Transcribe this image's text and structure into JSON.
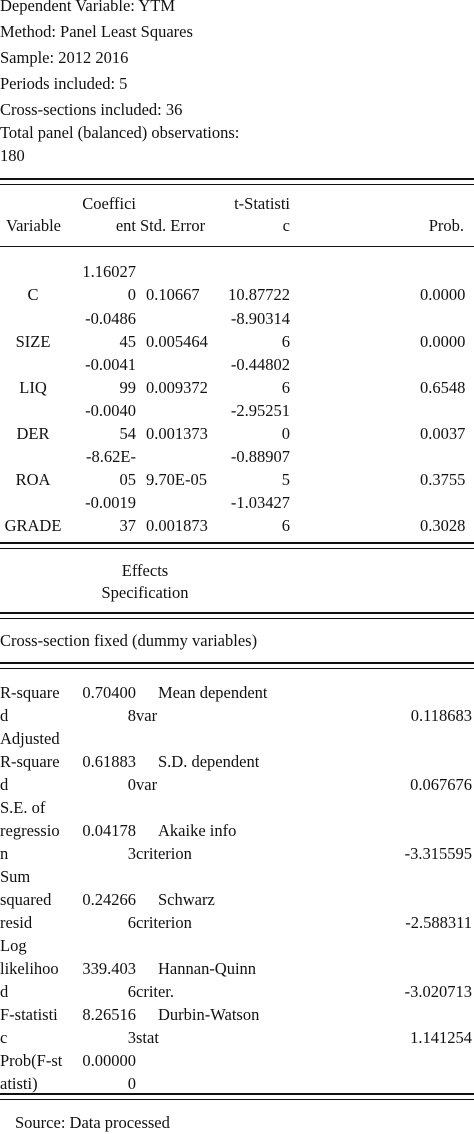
{
  "header": {
    "lines": [
      "Dependent Variable: YTM",
      "Method: Panel Least Squares",
      "Sample: 2012 2016",
      "Periods included: 5",
      "Cross-sections included: 36",
      "Total panel (balanced) observations:",
      "180"
    ]
  },
  "coef_table": {
    "headers": {
      "variable": "Variable",
      "coef_l1": "Coeffici",
      "coef_l2": "ent",
      "stderr": "Std. Error",
      "tstat_l1": "t-Statisti",
      "tstat_l2": "c",
      "prob": "Prob."
    },
    "rows": [
      {
        "variable": "C",
        "coef_l1": "1.16027",
        "coef_l2": "0",
        "stderr": "0.10667",
        "tstat_l1": "",
        "tstat_l2": "10.87722",
        "prob": "0.0000"
      },
      {
        "variable": "SIZE",
        "coef_l1": "-0.0486",
        "coef_l2": "45",
        "stderr": "0.005464",
        "tstat_l1": "-8.90314",
        "tstat_l2": "6",
        "prob": "0.0000"
      },
      {
        "variable": "LIQ",
        "coef_l1": "-0.0041",
        "coef_l2": "99",
        "stderr": "0.009372",
        "tstat_l1": "-0.44802",
        "tstat_l2": "6",
        "prob": "0.6548"
      },
      {
        "variable": "DER",
        "coef_l1": "-0.0040",
        "coef_l2": "54",
        "stderr": "0.001373",
        "tstat_l1": "-2.95251",
        "tstat_l2": "0",
        "prob": "0.0037"
      },
      {
        "variable": "ROA",
        "coef_l1": "-8.62E-",
        "coef_l2": "05",
        "stderr": "9.70E-05",
        "tstat_l1": "-0.88907",
        "tstat_l2": "5",
        "prob": "0.3755"
      },
      {
        "variable": "GRADE",
        "coef_l1": "-0.0019",
        "coef_l2": "37",
        "stderr": "0.001873",
        "tstat_l1": "-1.03427",
        "tstat_l2": "6",
        "prob": "0.3028"
      }
    ]
  },
  "effects": {
    "title_l1": "Effects",
    "title_l2": "Specification",
    "cross_section": "Cross-section fixed (dummy variables)"
  },
  "stats": [
    {
      "lines": [
        "R-square",
        "d"
      ],
      "value_l1": "0.70400",
      "value_l2": "8",
      "label_lines": [
        "Mean dependent",
        "var"
      ],
      "right_value": "0.118683"
    },
    {
      "lines": [
        "Adjusted",
        "R-square",
        "d"
      ],
      "value_l1": "0.61883",
      "value_l2": "0",
      "label_lines": [
        "S.D. dependent",
        "var"
      ],
      "right_value": "0.067676"
    },
    {
      "lines": [
        "S.E. of",
        "regressio",
        "n"
      ],
      "value_l1": "0.04178",
      "value_l2": "3",
      "label_lines": [
        "Akaike info",
        "criterion"
      ],
      "right_value": "-3.315595"
    },
    {
      "lines": [
        "Sum",
        "squared",
        "resid"
      ],
      "value_l1": "0.24266",
      "value_l2": "6",
      "label_lines": [
        "Schwarz",
        "criterion"
      ],
      "right_value": "-2.588311"
    },
    {
      "lines": [
        "Log",
        "likelihoo",
        "d"
      ],
      "value_l1": "339.403",
      "value_l2": "6",
      "label_lines": [
        "Hannan-Quinn",
        "criter."
      ],
      "right_value": "-3.020713"
    },
    {
      "lines": [
        "F-statisti",
        "c"
      ],
      "value_l1": "8.26516",
      "value_l2": "3",
      "label_lines": [
        "Durbin-Watson",
        "stat"
      ],
      "right_value": "1.141254"
    },
    {
      "lines": [
        "Prob(F-st",
        "atisti)"
      ],
      "value_l1": "0.00000",
      "value_l2": "0",
      "label_lines": [],
      "right_value": ""
    }
  ],
  "footer": {
    "source": "Source: Data processed"
  }
}
